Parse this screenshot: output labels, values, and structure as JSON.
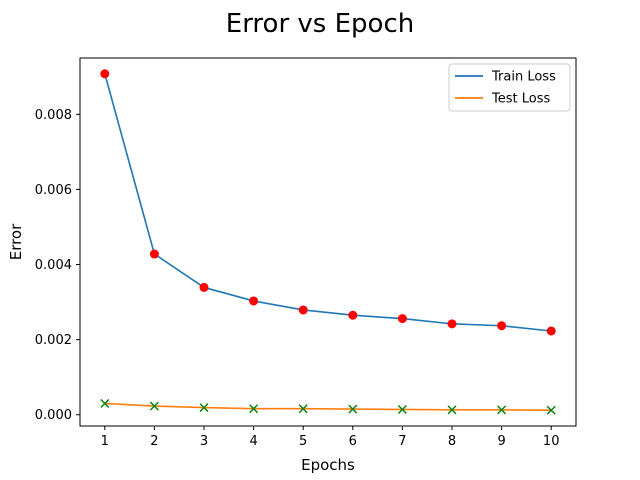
{
  "chart_data": {
    "type": "line",
    "title": "Error vs Epoch",
    "xlabel": "Epochs",
    "ylabel": "Error",
    "x": [
      1,
      2,
      3,
      4,
      5,
      6,
      7,
      8,
      9,
      10
    ],
    "xlim": [
      0.5,
      10.5
    ],
    "ylim": [
      -0.0003,
      0.0095
    ],
    "xticks": [
      "1",
      "2",
      "3",
      "4",
      "5",
      "6",
      "7",
      "8",
      "9",
      "10"
    ],
    "yticks": [
      0.0,
      0.002,
      0.004,
      0.006,
      0.008
    ],
    "ytick_labels": [
      "0.000",
      "0.002",
      "0.004",
      "0.006",
      "0.008"
    ],
    "grid": false,
    "legend_position": "top-right",
    "series": [
      {
        "name": "Train Loss",
        "color": "#1f77b4",
        "marker": "circle",
        "marker_color": "#ff0000",
        "values": [
          0.00908,
          0.00428,
          0.00339,
          0.00303,
          0.00279,
          0.00265,
          0.00256,
          0.00242,
          0.00237,
          0.00223
        ]
      },
      {
        "name": "Test Loss",
        "color": "#ff7f0e",
        "marker": "x",
        "marker_color": "#008000",
        "values": [
          0.0003,
          0.00023,
          0.00019,
          0.00016,
          0.00016,
          0.00015,
          0.00014,
          0.00013,
          0.00013,
          0.00012
        ]
      }
    ]
  }
}
